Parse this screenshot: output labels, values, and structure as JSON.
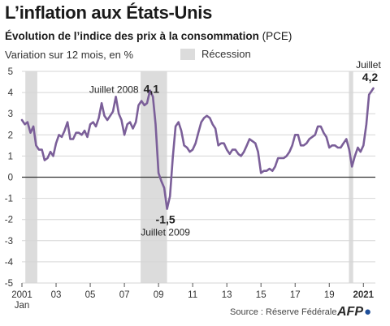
{
  "header": {
    "title": "L’inflation aux États-Unis",
    "subtitle_bold": "Évolution de l’indice des prix à la consommation",
    "subtitle_rest": " (PCE)",
    "unit_label": "Variation sur 12 mois, en %"
  },
  "legend": {
    "recession_label": "Récession",
    "recession_color": "#dcdcdc"
  },
  "footer": {
    "source": "Source : Réserve Fédérale",
    "brand": "AFP"
  },
  "colors": {
    "line": "#7b5f99",
    "zero_line": "#333333",
    "grid": "#d6d6d6",
    "text": "#333333"
  },
  "chart_data": {
    "type": "line",
    "ylim": [
      -5,
      5
    ],
    "y_ticks": [
      5,
      4,
      3,
      2,
      1,
      0,
      -1,
      -2,
      -3,
      -4,
      -5
    ],
    "xlim": [
      2001.0,
      2021.7
    ],
    "x_ticks": [
      {
        "x": 2001,
        "label": "2001",
        "sublabel": "Jan",
        "bold": false
      },
      {
        "x": 2003,
        "label": "03",
        "bold": false
      },
      {
        "x": 2005,
        "label": "05",
        "bold": false
      },
      {
        "x": 2007,
        "label": "07",
        "bold": false
      },
      {
        "x": 2009,
        "label": "09",
        "bold": false
      },
      {
        "x": 2011,
        "label": "11",
        "bold": false
      },
      {
        "x": 2013,
        "label": "13",
        "bold": false
      },
      {
        "x": 2015,
        "label": "15",
        "bold": false
      },
      {
        "x": 2017,
        "label": "17",
        "bold": false
      },
      {
        "x": 2019,
        "label": "19",
        "bold": false
      },
      {
        "x": 2021,
        "label": "2021",
        "bold": true
      }
    ],
    "recessions": [
      [
        2001.2,
        2001.9
      ],
      [
        2007.95,
        2009.5
      ],
      [
        2020.15,
        2020.4
      ]
    ],
    "series": [
      {
        "points": [
          [
            2001.0,
            2.7
          ],
          [
            2001.17,
            2.5
          ],
          [
            2001.33,
            2.6
          ],
          [
            2001.5,
            2.1
          ],
          [
            2001.67,
            2.4
          ],
          [
            2001.83,
            1.5
          ],
          [
            2002.0,
            1.3
          ],
          [
            2002.17,
            1.3
          ],
          [
            2002.33,
            0.8
          ],
          [
            2002.5,
            0.9
          ],
          [
            2002.67,
            1.2
          ],
          [
            2002.83,
            1.0
          ],
          [
            2003.0,
            1.6
          ],
          [
            2003.17,
            2.0
          ],
          [
            2003.33,
            1.9
          ],
          [
            2003.5,
            2.2
          ],
          [
            2003.67,
            2.6
          ],
          [
            2003.83,
            1.8
          ],
          [
            2004.0,
            1.8
          ],
          [
            2004.17,
            2.1
          ],
          [
            2004.33,
            2.1
          ],
          [
            2004.5,
            2.0
          ],
          [
            2004.67,
            2.2
          ],
          [
            2004.83,
            1.9
          ],
          [
            2005.0,
            2.5
          ],
          [
            2005.17,
            2.6
          ],
          [
            2005.33,
            2.4
          ],
          [
            2005.5,
            2.8
          ],
          [
            2005.67,
            3.5
          ],
          [
            2005.83,
            2.9
          ],
          [
            2006.0,
            2.7
          ],
          [
            2006.17,
            2.9
          ],
          [
            2006.33,
            3.1
          ],
          [
            2006.5,
            3.8
          ],
          [
            2006.67,
            3.0
          ],
          [
            2006.83,
            2.7
          ],
          [
            2007.0,
            2.0
          ],
          [
            2007.17,
            2.5
          ],
          [
            2007.33,
            2.6
          ],
          [
            2007.5,
            2.3
          ],
          [
            2007.67,
            2.6
          ],
          [
            2007.83,
            3.4
          ],
          [
            2008.0,
            3.6
          ],
          [
            2008.17,
            3.4
          ],
          [
            2008.33,
            3.5
          ],
          [
            2008.5,
            4.1
          ],
          [
            2008.67,
            3.8
          ],
          [
            2008.83,
            2.5
          ],
          [
            2009.0,
            0.2
          ],
          [
            2009.17,
            -0.2
          ],
          [
            2009.33,
            -0.5
          ],
          [
            2009.5,
            -1.5
          ],
          [
            2009.67,
            -0.9
          ],
          [
            2009.83,
            0.9
          ],
          [
            2010.0,
            2.4
          ],
          [
            2010.17,
            2.6
          ],
          [
            2010.33,
            2.2
          ],
          [
            2010.5,
            1.5
          ],
          [
            2010.67,
            1.4
          ],
          [
            2010.83,
            1.2
          ],
          [
            2011.0,
            1.3
          ],
          [
            2011.17,
            1.6
          ],
          [
            2011.33,
            2.1
          ],
          [
            2011.5,
            2.6
          ],
          [
            2011.67,
            2.8
          ],
          [
            2011.83,
            2.9
          ],
          [
            2012.0,
            2.8
          ],
          [
            2012.17,
            2.5
          ],
          [
            2012.33,
            2.3
          ],
          [
            2012.5,
            1.5
          ],
          [
            2012.67,
            1.6
          ],
          [
            2012.83,
            1.6
          ],
          [
            2013.0,
            1.3
          ],
          [
            2013.17,
            1.1
          ],
          [
            2013.33,
            1.3
          ],
          [
            2013.5,
            1.3
          ],
          [
            2013.67,
            1.1
          ],
          [
            2013.83,
            1.0
          ],
          [
            2014.0,
            1.2
          ],
          [
            2014.17,
            1.5
          ],
          [
            2014.33,
            1.8
          ],
          [
            2014.5,
            1.7
          ],
          [
            2014.67,
            1.6
          ],
          [
            2014.83,
            1.2
          ],
          [
            2015.0,
            0.2
          ],
          [
            2015.17,
            0.3
          ],
          [
            2015.33,
            0.3
          ],
          [
            2015.5,
            0.4
          ],
          [
            2015.67,
            0.3
          ],
          [
            2015.83,
            0.5
          ],
          [
            2016.0,
            0.9
          ],
          [
            2016.17,
            0.9
          ],
          [
            2016.33,
            0.9
          ],
          [
            2016.5,
            1.0
          ],
          [
            2016.67,
            1.2
          ],
          [
            2016.83,
            1.5
          ],
          [
            2017.0,
            2.0
          ],
          [
            2017.17,
            2.0
          ],
          [
            2017.33,
            1.5
          ],
          [
            2017.5,
            1.5
          ],
          [
            2017.67,
            1.6
          ],
          [
            2017.83,
            1.8
          ],
          [
            2018.0,
            1.9
          ],
          [
            2018.17,
            2.0
          ],
          [
            2018.33,
            2.4
          ],
          [
            2018.5,
            2.4
          ],
          [
            2018.67,
            2.1
          ],
          [
            2018.83,
            1.9
          ],
          [
            2019.0,
            1.4
          ],
          [
            2019.17,
            1.5
          ],
          [
            2019.33,
            1.5
          ],
          [
            2019.5,
            1.4
          ],
          [
            2019.67,
            1.4
          ],
          [
            2019.83,
            1.6
          ],
          [
            2020.0,
            1.8
          ],
          [
            2020.17,
            1.3
          ],
          [
            2020.33,
            0.5
          ],
          [
            2020.5,
            1.0
          ],
          [
            2020.67,
            1.4
          ],
          [
            2020.83,
            1.2
          ],
          [
            2021.0,
            1.5
          ],
          [
            2021.17,
            2.5
          ],
          [
            2021.33,
            3.9
          ],
          [
            2021.5,
            4.1
          ],
          [
            2021.58,
            4.2
          ]
        ]
      }
    ],
    "annotations": [
      {
        "x": 2008.5,
        "y": 4.1,
        "label": "Juillet 2008",
        "value": "4,1"
      },
      {
        "x": 2009.5,
        "y": -1.5,
        "label": "Juillet 2009",
        "value": "-1,5"
      },
      {
        "x": 2021.58,
        "y": 4.2,
        "label": "Juillet",
        "value": "4,2"
      }
    ]
  }
}
